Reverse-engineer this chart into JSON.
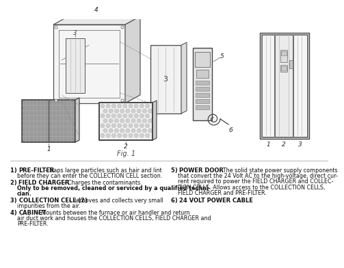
{
  "background_color": "#ffffff",
  "fig_label": "Fig. 1",
  "text_items_left": [
    {
      "num": "1) ",
      "label": "PRE-FILTER",
      "desc": " - Traps large particles such as hair and lint before they can enter the COLLECTION CELL section."
    },
    {
      "num": "2) ",
      "label": "FIELD CHARGER",
      "desc": " - Charges the contaminants. ",
      "bold_extra": "Only to be removed, cleaned or serviced by a qualified techni-cian."
    },
    {
      "num": "3) ",
      "label": "COLLECTION CELL (2)",
      "desc": " - Removes and collects very small impurities from the air."
    },
    {
      "num": "4) ",
      "label": "CABINET",
      "desc": " - Mounts between the furnace or air handler and return air duct work and houses the COLLECTION CELLS, FIELD CHARGER and PRE-FILTER."
    }
  ],
  "text_items_right": [
    {
      "num": "5) ",
      "label": "POWER DOOR",
      "desc": " - The solid state power supply components that convert the 24 Volt AC to the high-voltage, direct current required to power the FIELD CHARGER and COLLECTION CELLS. Allows access to the COLLECTION CELLS, FIELD CHARGER and PRE-FILTER."
    },
    {
      "num": "6) ",
      "label": "24 VOLT POWER CABLE",
      "desc": ""
    }
  ]
}
